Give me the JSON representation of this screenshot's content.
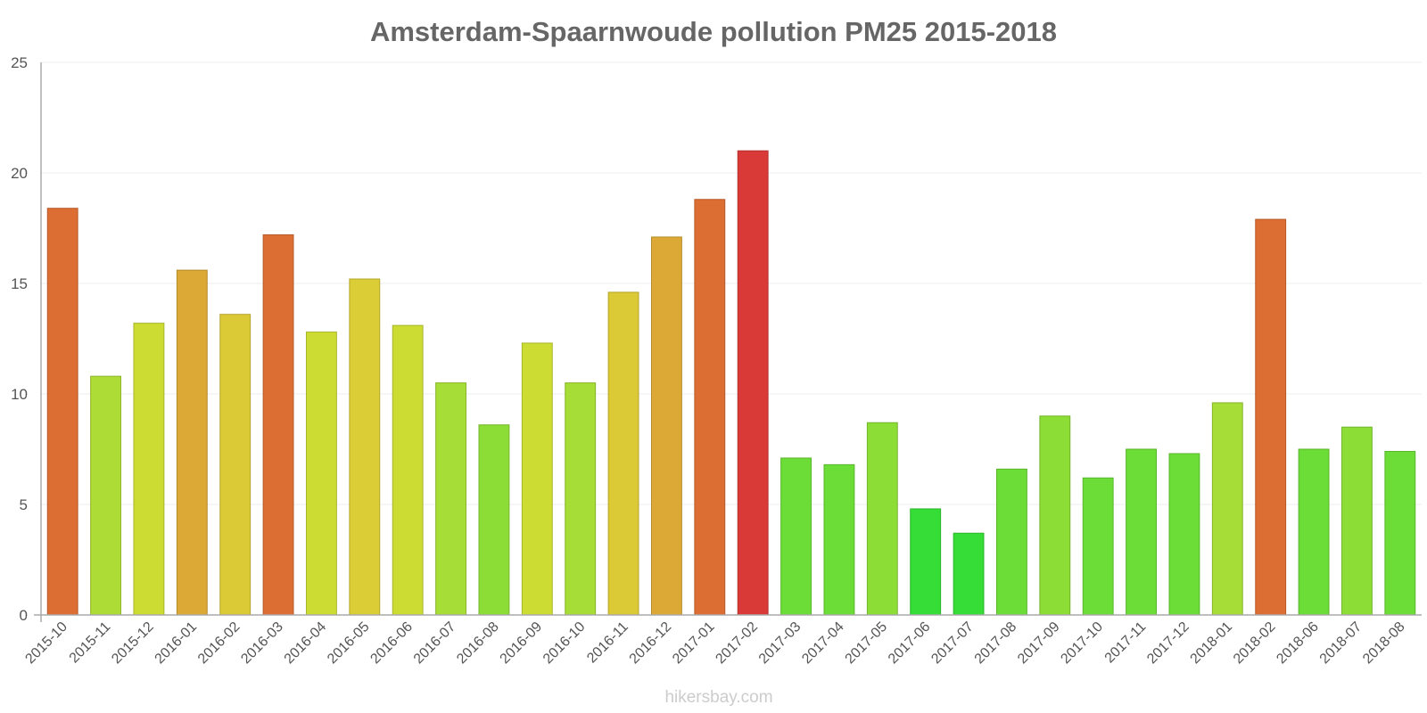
{
  "chart_data": {
    "type": "bar",
    "title": "Amsterdam-Spaarnwoude pollution PM25 2015-2018",
    "xlabel": "",
    "ylabel": "",
    "ylim": [
      0,
      25
    ],
    "yticks": [
      "0",
      "5",
      "10",
      "15",
      "20",
      "25"
    ],
    "grid": true,
    "legend": "none",
    "categories": [
      "2015-10",
      "2015-11",
      "2015-12",
      "2016-01",
      "2016-02",
      "2016-03",
      "2016-04",
      "2016-05",
      "2016-06",
      "2016-07",
      "2016-08",
      "2016-09",
      "2016-10",
      "2016-11",
      "2016-12",
      "2017-01",
      "2017-02",
      "2017-03",
      "2017-04",
      "2017-05",
      "2017-06",
      "2017-07",
      "2017-08",
      "2017-09",
      "2017-10",
      "2017-11",
      "2017-12",
      "2018-01",
      "2018-02",
      "2018-06",
      "2018-07",
      "2018-08"
    ],
    "values": [
      18.4,
      10.8,
      13.2,
      15.6,
      13.6,
      17.2,
      12.8,
      15.2,
      13.1,
      10.5,
      8.6,
      12.3,
      10.5,
      14.6,
      17.1,
      18.8,
      21,
      7.1,
      6.8,
      8.7,
      4.8,
      3.7,
      6.6,
      9,
      6.2,
      7.5,
      7.3,
      9.6,
      17.9,
      7.5,
      8.5,
      7.4
    ],
    "colors": [
      "#dd6e33",
      "#aedc36",
      "#cddc33",
      "#dca936",
      "#dbc936",
      "#dd6e33",
      "#cddc33",
      "#dbcd36",
      "#cddc33",
      "#a6dd36",
      "#8cdd36",
      "#cddc33",
      "#a6dd36",
      "#dbc936",
      "#dca936",
      "#dd6e33",
      "#d93a37",
      "#6cdd36",
      "#6cdd36",
      "#8cdd36",
      "#36dd36",
      "#36dd36",
      "#6cdd36",
      "#8cdd36",
      "#6cdd36",
      "#6cdd36",
      "#6cdd36",
      "#a6dd36",
      "#dd6e33",
      "#6cdd36",
      "#8cdd36",
      "#6cdd36"
    ]
  },
  "watermark": "hikersbay.com"
}
